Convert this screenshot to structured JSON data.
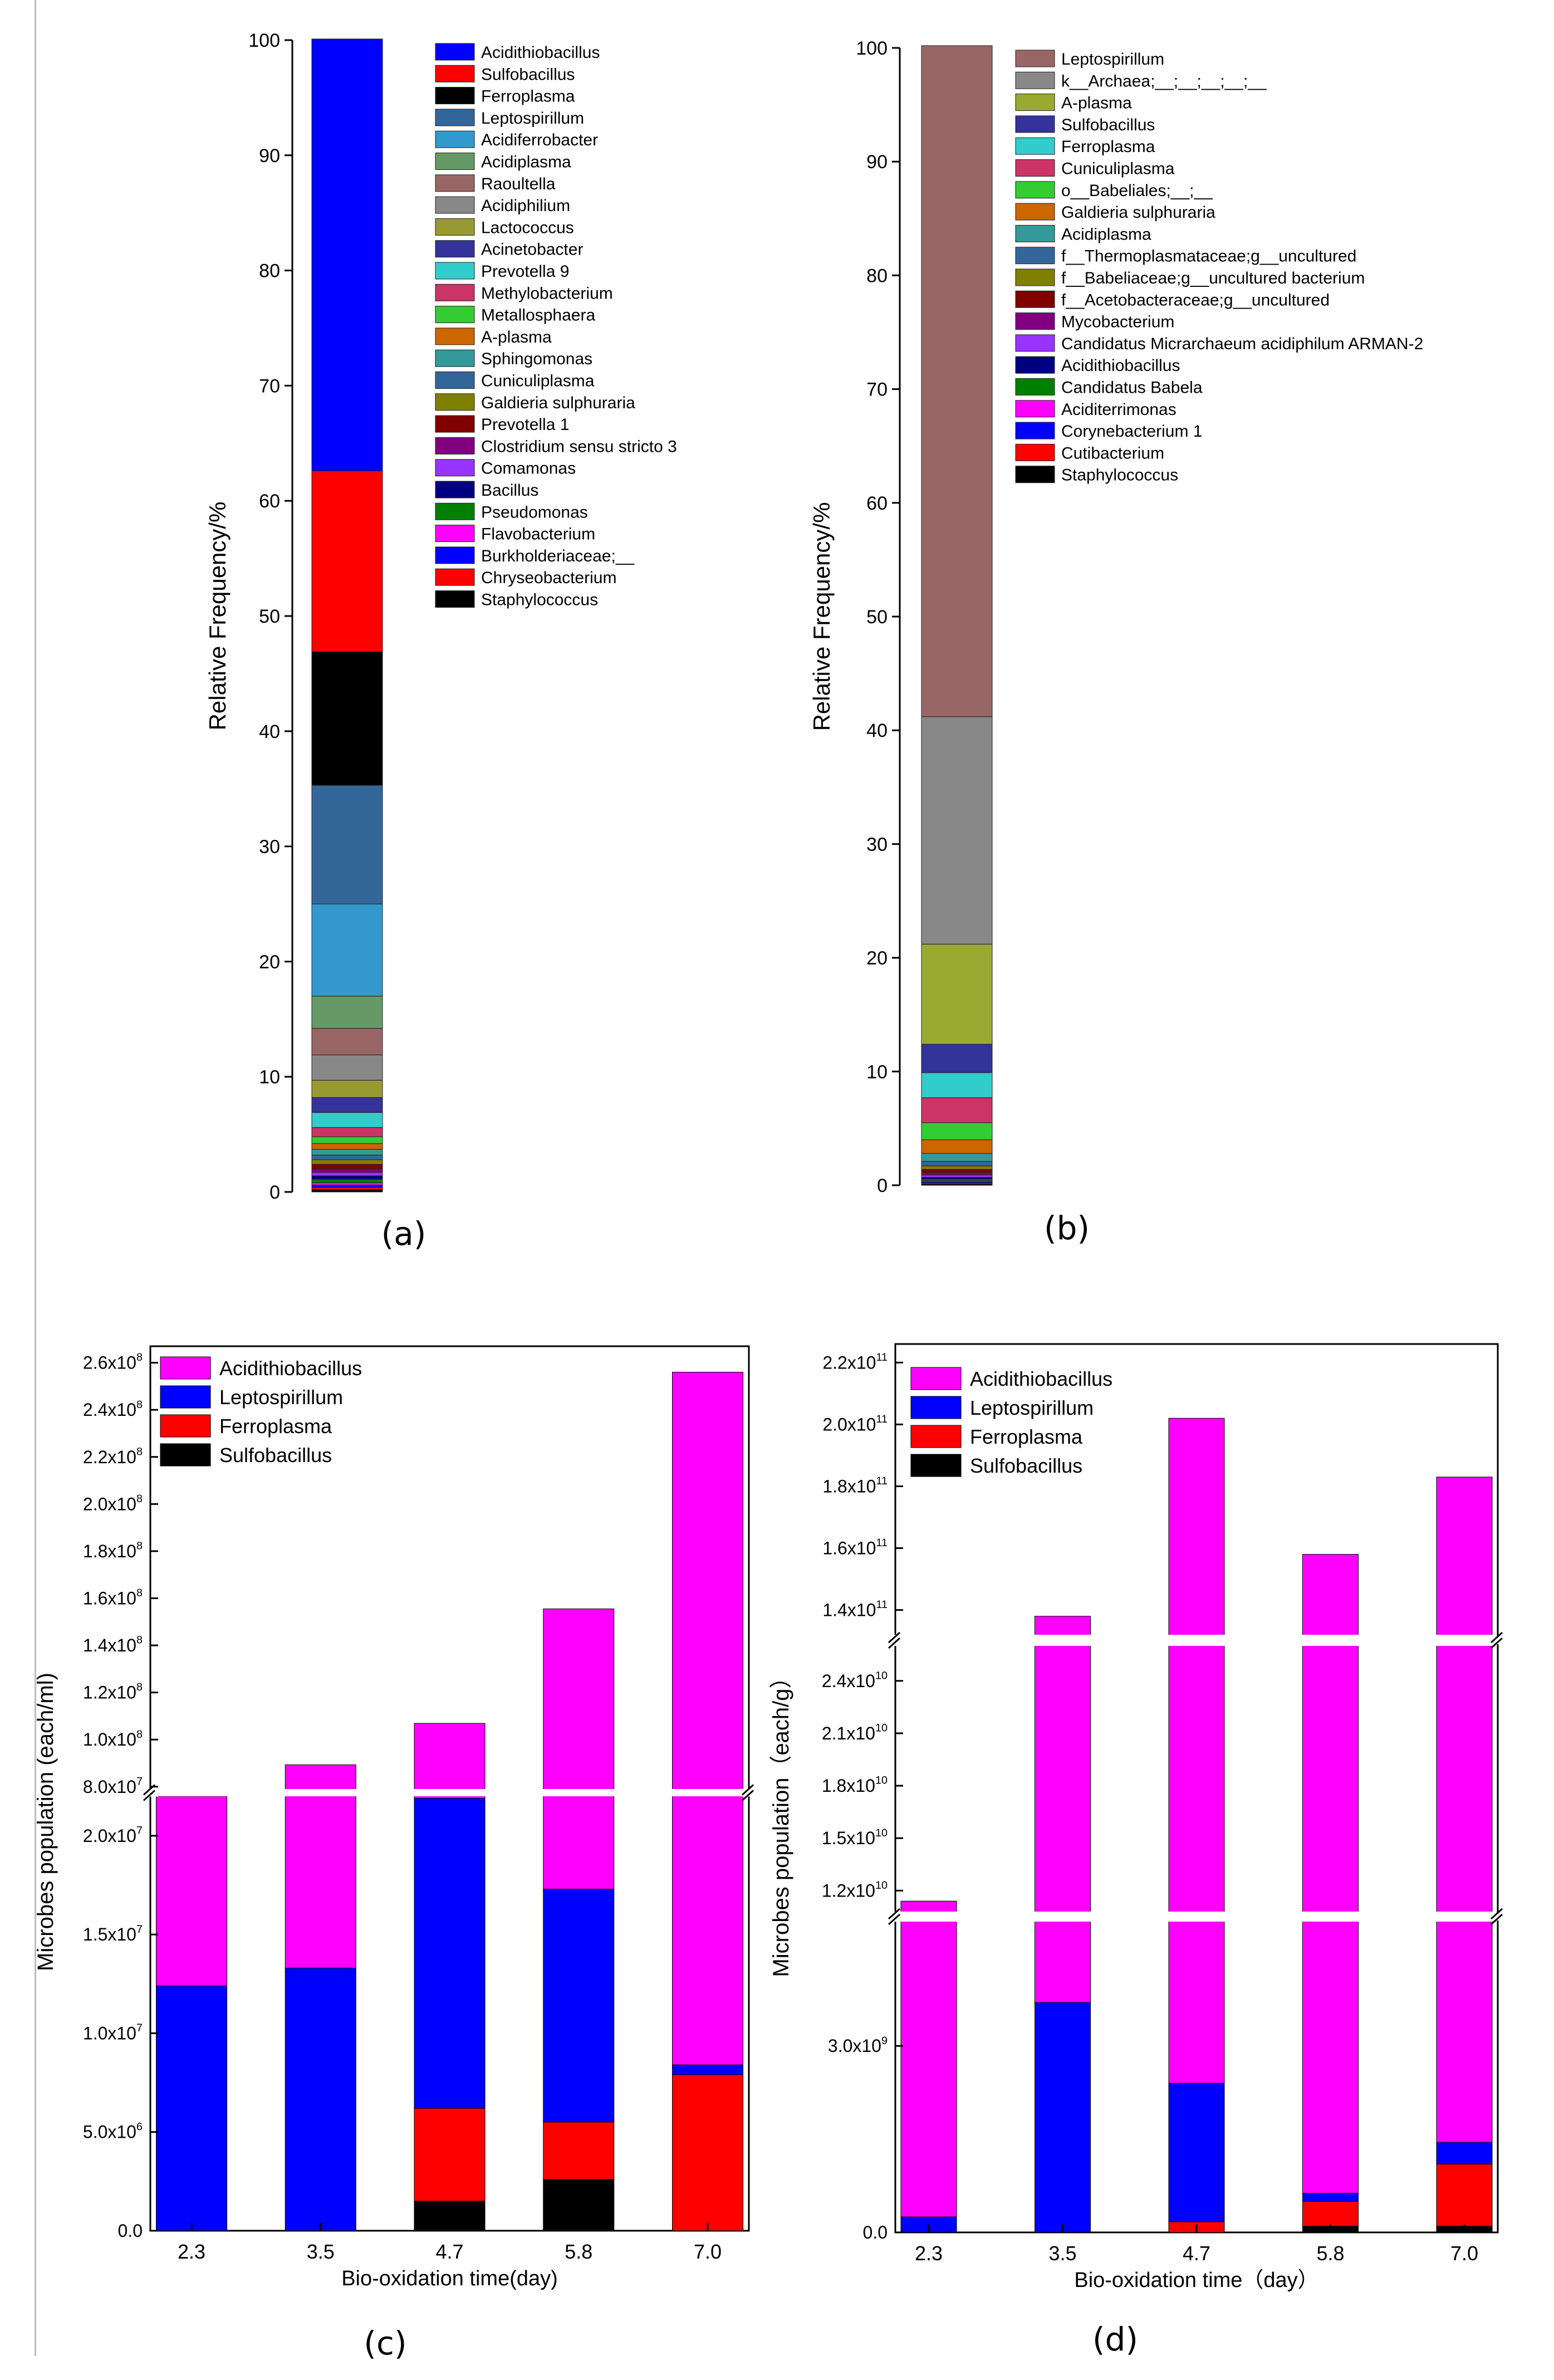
{
  "panel_labels": [
    "(a)",
    "(b)",
    "(c)",
    "(d)"
  ],
  "chart_data": [
    {
      "panel": "(a)",
      "type": "bar",
      "stacked": true,
      "ylabel": "Relative Frequency/%",
      "ylim": [
        0,
        100
      ],
      "yticks": [
        "0",
        "10",
        "20",
        "30",
        "40",
        "50",
        "60",
        "70",
        "80",
        "90",
        "100"
      ],
      "legend_position": "right",
      "series": [
        {
          "name": "Acidithiobacillus",
          "color": "#0000ff",
          "value": 37.5
        },
        {
          "name": "Sulfobacillus",
          "color": "#ff0000",
          "value": 15.7
        },
        {
          "name": "Ferroplasma",
          "color": "#000000",
          "value": 11.6
        },
        {
          "name": "Leptospirillum",
          "color": "#336699",
          "value": 10.3
        },
        {
          "name": "Acidiferrobacter",
          "color": "#3399cc",
          "value": 8.0
        },
        {
          "name": "Acidiplasma",
          "color": "#669966",
          "value": 2.8
        },
        {
          "name": "Raoultella",
          "color": "#996666",
          "value": 2.3
        },
        {
          "name": "Acidiphilium",
          "color": "#888888",
          "value": 2.2
        },
        {
          "name": "Lactococcus",
          "color": "#999933",
          "value": 1.5
        },
        {
          "name": "Acinetobacter",
          "color": "#333399",
          "value": 1.3
        },
        {
          "name": "Prevotella 9",
          "color": "#33cccc",
          "value": 1.3
        },
        {
          "name": "Methylobacterium",
          "color": "#cc3366",
          "value": 0.8
        },
        {
          "name": "Metallosphaera",
          "color": "#33cc33",
          "value": 0.6
        },
        {
          "name": "A-plasma",
          "color": "#cc6600",
          "value": 0.5
        },
        {
          "name": "Sphingomonas",
          "color": "#339999",
          "value": 0.5
        },
        {
          "name": "Cuniculiplasma",
          "color": "#336699",
          "value": 0.4
        },
        {
          "name": "Galdieria sulphuraria",
          "color": "#808000",
          "value": 0.4
        },
        {
          "name": "Prevotella 1",
          "color": "#800000",
          "value": 0.4
        },
        {
          "name": "Clostridium sensu stricto 3",
          "color": "#800080",
          "value": 0.3
        },
        {
          "name": "Comamonas",
          "color": "#9933ff",
          "value": 0.3
        },
        {
          "name": "Bacillus",
          "color": "#000080",
          "value": 0.3
        },
        {
          "name": "Pseudomonas",
          "color": "#008000",
          "value": 0.3
        },
        {
          "name": "Flavobacterium",
          "color": "#ff00ff",
          "value": 0.2
        },
        {
          "name": "Burkholderiaceae;__",
          "color": "#0000ff",
          "value": 0.2
        },
        {
          "name": "Chryseobacterium",
          "color": "#ff0000",
          "value": 0.2
        },
        {
          "name": "Staphylococcus",
          "color": "#000000",
          "value": 0.2
        }
      ]
    },
    {
      "panel": "(b)",
      "type": "bar",
      "stacked": true,
      "ylabel": "Relative Frequency/%",
      "ylim": [
        0,
        100
      ],
      "yticks": [
        "0",
        "10",
        "20",
        "30",
        "40",
        "50",
        "60",
        "70",
        "80",
        "90",
        "100"
      ],
      "legend_position": "right",
      "series": [
        {
          "name": "Leptospirillum",
          "color": "#996666",
          "value": 59.0
        },
        {
          "name": "k__Archaea;__;__;__;__;__",
          "color": "#888888",
          "value": 20.0
        },
        {
          "name": "A-plasma",
          "color": "#99aa33",
          "value": 8.8
        },
        {
          "name": "Sulfobacillus",
          "color": "#333399",
          "value": 2.5
        },
        {
          "name": "Ferroplasma",
          "color": "#33cccc",
          "value": 2.2
        },
        {
          "name": "Cuniculiplasma",
          "color": "#cc3366",
          "value": 2.2
        },
        {
          "name": "o__Babeliales;__;__",
          "color": "#33cc33",
          "value": 1.5
        },
        {
          "name": "Galdieria sulphuraria",
          "color": "#cc6600",
          "value": 1.2
        },
        {
          "name": "Acidiplasma",
          "color": "#339999",
          "value": 0.7
        },
        {
          "name": "f__Thermoplasmataceae;g__uncultured",
          "color": "#336699",
          "value": 0.4
        },
        {
          "name": "f__Babeliaceae;g__uncultured bacterium",
          "color": "#808000",
          "value": 0.3
        },
        {
          "name": "f__Acetobacteraceae;g__uncultured",
          "color": "#800000",
          "value": 0.3
        },
        {
          "name": "Mycobacterium",
          "color": "#800080",
          "value": 0.2
        },
        {
          "name": "Candidatus Micrarchaeum acidiphilum ARMAN-2",
          "color": "#9933ff",
          "value": 0.2
        },
        {
          "name": "Acidithiobacillus",
          "color": "#000080",
          "value": 0.15
        },
        {
          "name": "Candidatus Babela",
          "color": "#008000",
          "value": 0.15
        },
        {
          "name": "Aciditerrimonas",
          "color": "#ff00ff",
          "value": 0.1
        },
        {
          "name": "Corynebacterium 1",
          "color": "#0000ff",
          "value": 0.1
        },
        {
          "name": "Cutibacterium",
          "color": "#ff0000",
          "value": 0.1
        },
        {
          "name": "Staphylococcus",
          "color": "#000000",
          "value": 0.1
        }
      ]
    },
    {
      "panel": "(c)",
      "type": "bar",
      "stacked": true,
      "xlabel": "Bio-oxidation time(day)",
      "ylabel": "Microbes population (each/ml)",
      "categories": [
        "2.3",
        "3.5",
        "4.7",
        "5.8",
        "7.0"
      ],
      "y_break": [
        22000000.0,
        79000000.0
      ],
      "yticks_lower": [
        {
          "value": 0,
          "label": "0.0"
        },
        {
          "value": 5000000,
          "label": "5.0x10^6"
        },
        {
          "value": 10000000,
          "label": "1.0x10^7"
        },
        {
          "value": 15000000,
          "label": "1.5x10^7"
        },
        {
          "value": 20000000,
          "label": "2.0x10^7"
        }
      ],
      "yticks_upper": [
        {
          "value": 80000000,
          "label": "8.0x10^7"
        },
        {
          "value": 100000000,
          "label": "1.0x10^8"
        },
        {
          "value": 120000000,
          "label": "1.2x10^8"
        },
        {
          "value": 140000000,
          "label": "1.4x10^8"
        },
        {
          "value": 160000000,
          "label": "1.6x10^8"
        },
        {
          "value": 180000000,
          "label": "1.8x10^8"
        },
        {
          "value": 200000000,
          "label": "2.0x10^8"
        },
        {
          "value": 220000000,
          "label": "2.2x10^8"
        },
        {
          "value": 240000000,
          "label": "2.4x10^8"
        },
        {
          "value": 260000000,
          "label": "2.6x10^8"
        }
      ],
      "legend_position": "top-left",
      "series": [
        {
          "name": "Sulfobacillus",
          "color": "#000000",
          "values": [
            0,
            0,
            1500000,
            2600000,
            0
          ]
        },
        {
          "name": "Ferroplasma",
          "color": "#ff0000",
          "values": [
            0,
            0,
            4700000,
            2900000,
            7900000
          ]
        },
        {
          "name": "Leptospirillum",
          "color": "#0000ff",
          "values": [
            12400000,
            13300000,
            15700000,
            11800000,
            500000
          ]
        },
        {
          "name": "Acidithiobacillus",
          "color": "#ff00ff",
          "values": [
            9600000,
            76000000,
            85000000,
            138200000,
            247600000
          ]
        }
      ],
      "legend_order": [
        "Acidithiobacillus",
        "Leptospirillum",
        "Ferroplasma",
        "Sulfobacillus"
      ]
    },
    {
      "panel": "(d)",
      "type": "bar",
      "stacked": true,
      "xlabel": "Bio-oxidation time（day）",
      "ylabel": "Microbes population（each/g）",
      "categories": [
        "2.3",
        "3.5",
        "4.7",
        "5.8",
        "7.0"
      ],
      "y_breaks": [
        [
          5000000000.0,
          10800000000.0
        ],
        [
          26000000000.0,
          132000000000.0
        ]
      ],
      "yticks_lower": [
        {
          "value": 0,
          "label": "0.0"
        },
        {
          "value": 3000000000,
          "label": "3.0x10^9"
        }
      ],
      "yticks_middle": [
        {
          "value": 12000000000,
          "label": "1.2x10^10"
        },
        {
          "value": 15000000000,
          "label": "1.5x10^10"
        },
        {
          "value": 18000000000,
          "label": "1.8x10^10"
        },
        {
          "value": 21000000000,
          "label": "2.1x10^10"
        },
        {
          "value": 24000000000,
          "label": "2.4x10^10"
        }
      ],
      "yticks_upper": [
        {
          "value": 140000000000,
          "label": "1.4x10^11"
        },
        {
          "value": 160000000000,
          "label": "1.6x10^11"
        },
        {
          "value": 180000000000,
          "label": "1.8x10^11"
        },
        {
          "value": 200000000000,
          "label": "2.0x10^11"
        },
        {
          "value": 220000000000,
          "label": "2.2x10^11"
        }
      ],
      "legend_position": "top-left",
      "series": [
        {
          "name": "Sulfobacillus",
          "color": "#000000",
          "values": [
            0,
            0,
            0,
            100000000,
            100000000
          ]
        },
        {
          "name": "Ferroplasma",
          "color": "#ff0000",
          "values": [
            0,
            0,
            170000000,
            400000000,
            1000000000
          ]
        },
        {
          "name": "Leptospirillum",
          "color": "#0000ff",
          "values": [
            250000000,
            3700000000,
            2230000000,
            130000000,
            350000000
          ]
        },
        {
          "name": "Acidithiobacillus",
          "color": "#ff00ff",
          "values": [
            11150000000,
            134300000000,
            199600000000,
            157370000000,
            181550000000
          ]
        }
      ],
      "legend_order": [
        "Acidithiobacillus",
        "Leptospirillum",
        "Ferroplasma",
        "Sulfobacillus"
      ]
    }
  ]
}
